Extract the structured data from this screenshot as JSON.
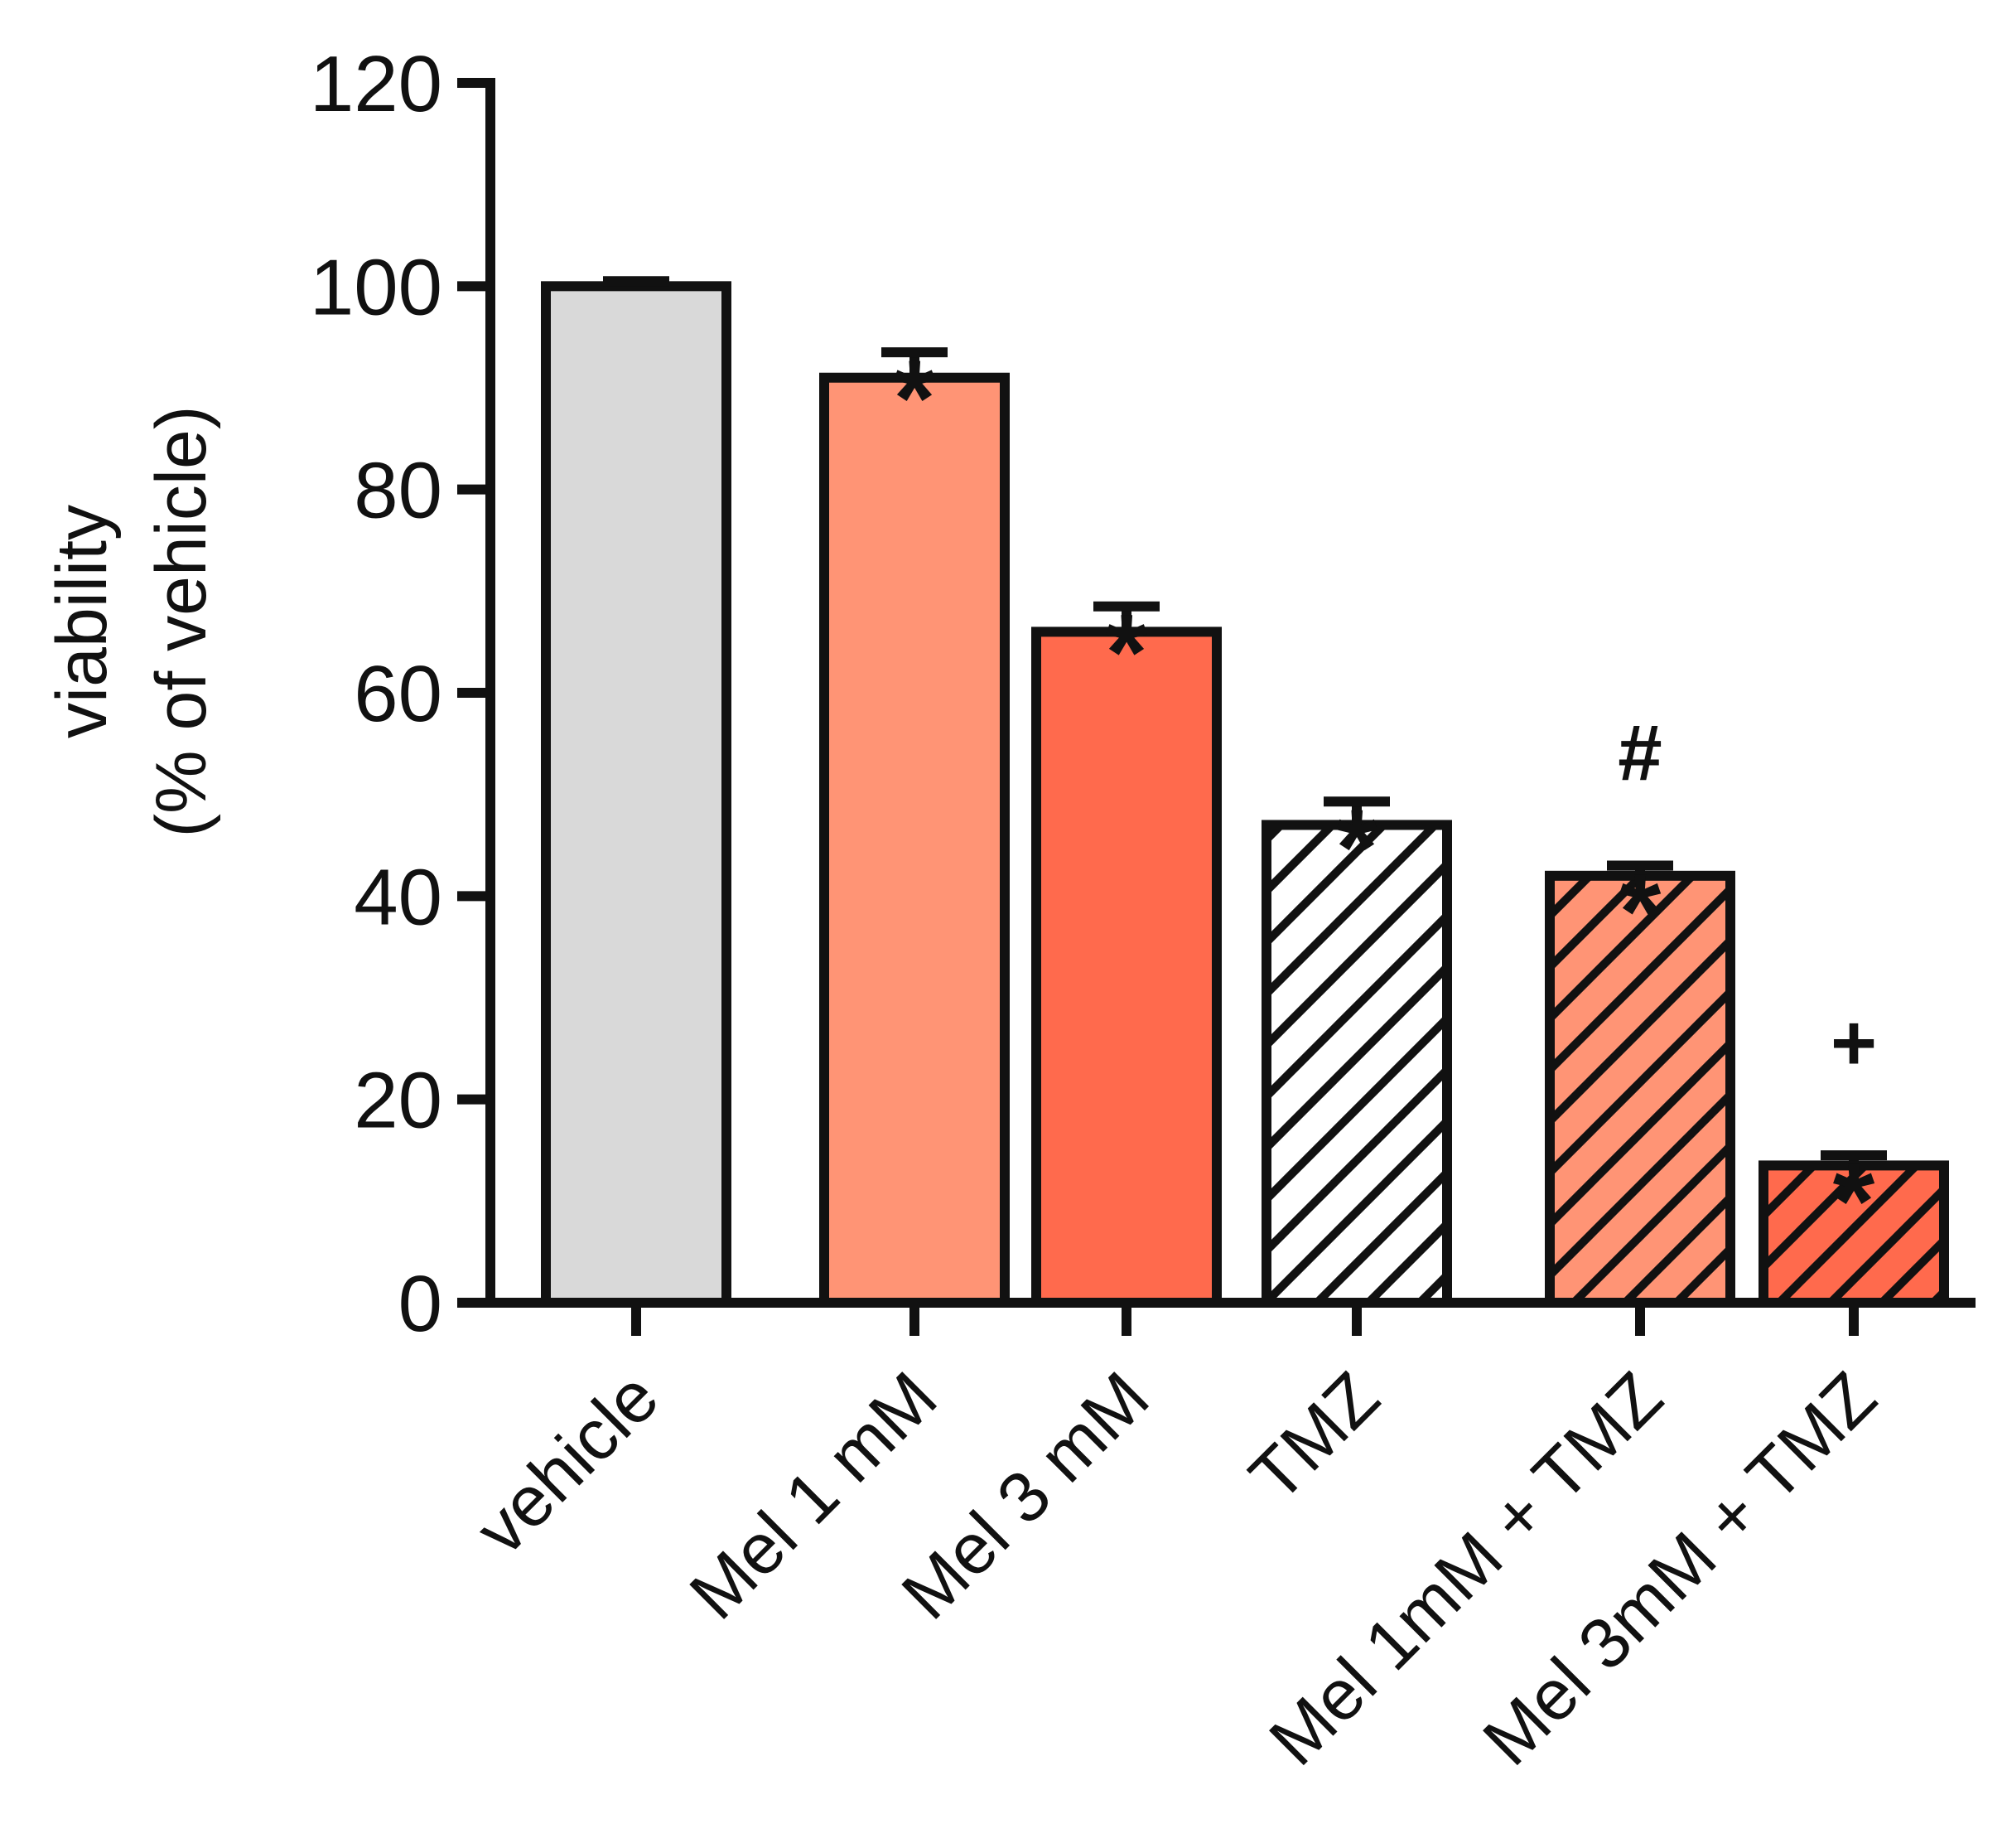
{
  "chart_data": {
    "type": "bar",
    "title": "",
    "ylabel_line1": "viability",
    "ylabel_line2": "(% of vehicle)",
    "xlabel": "",
    "ylim": [
      0,
      120
    ],
    "yticks": [
      "0",
      "20",
      "40",
      "60",
      "80",
      "100",
      "120"
    ],
    "grid": false,
    "legend": "none",
    "categories": [
      "vehicle",
      "Mel 1 mM",
      "Mel 3 mM",
      "TMZ",
      "Mel 1mM + TMZ",
      "Mel 3mM + TMZ"
    ],
    "values": [
      100,
      91,
      66,
      47,
      42,
      13.5
    ],
    "errors": [
      0.5,
      2.5,
      2.5,
      2.3,
      1,
      1
    ],
    "fills": [
      "#d9d9d9",
      "#ff9475",
      "#ff6a4d",
      "#ffffff",
      "#ff9475",
      "#ff6a4d"
    ],
    "hatched": [
      false,
      false,
      false,
      true,
      true,
      true
    ],
    "annotations": [
      [],
      [
        "*"
      ],
      [
        "*"
      ],
      [
        "*"
      ],
      [
        "*",
        "#"
      ],
      [
        "*",
        "+"
      ]
    ],
    "colors": {
      "outline": "#111111",
      "hatch": "#111111"
    }
  }
}
